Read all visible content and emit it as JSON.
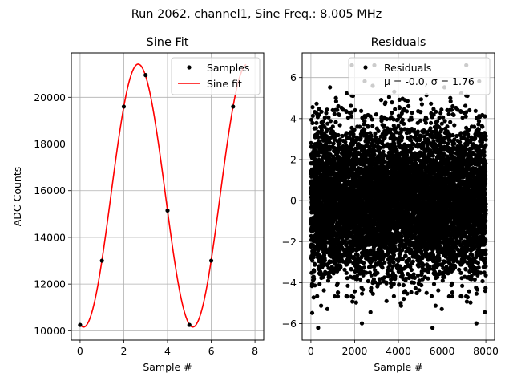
{
  "suptitle": "Run 2062, channel1, Sine Freq.: 8.005 MHz",
  "chart_data": [
    {
      "type": "line",
      "title": "Sine Fit",
      "xlabel": "Sample #",
      "ylabel": "ADC Counts",
      "xlim": [
        -0.4,
        8.4
      ],
      "ylim": [
        9600,
        21900
      ],
      "xticks": [
        0,
        2,
        4,
        6,
        8
      ],
      "yticks": [
        10000,
        12000,
        14000,
        16000,
        18000,
        20000
      ],
      "grid": true,
      "legend_position": "top-right",
      "series": [
        {
          "name": "Samples",
          "kind": "markers",
          "color": "#000000",
          "x": [
            0,
            1,
            2,
            3,
            4,
            5,
            6,
            7
          ],
          "y": [
            10250,
            13000,
            19600,
            20950,
            15150,
            10250,
            13000,
            19600
          ]
        },
        {
          "name": "Sine fit",
          "kind": "line",
          "color": "#ff0000",
          "model": {
            "offset": 15790,
            "amplitude": 5630,
            "period": 4.997,
            "phase_zero": 1.41,
            "x_start": 0,
            "x_end": 7.6
          }
        }
      ]
    },
    {
      "type": "scatter",
      "title": "Residuals",
      "xlabel": "Sample #",
      "ylabel": "",
      "xlim": [
        -400,
        8400
      ],
      "ylim": [
        -6.8,
        7.2
      ],
      "xticks": [
        0,
        2000,
        4000,
        6000,
        8000
      ],
      "yticks": [
        -6,
        -4,
        -2,
        0,
        2,
        4,
        6
      ],
      "grid": true,
      "legend_position": "top-right",
      "legend": {
        "name": "Residuals",
        "stats": "μ = -0.0, σ = 1.76"
      },
      "mu": 0.0,
      "sigma": 1.76,
      "n_points": 8000,
      "x_range": [
        0,
        8000
      ],
      "color": "#000000"
    }
  ]
}
